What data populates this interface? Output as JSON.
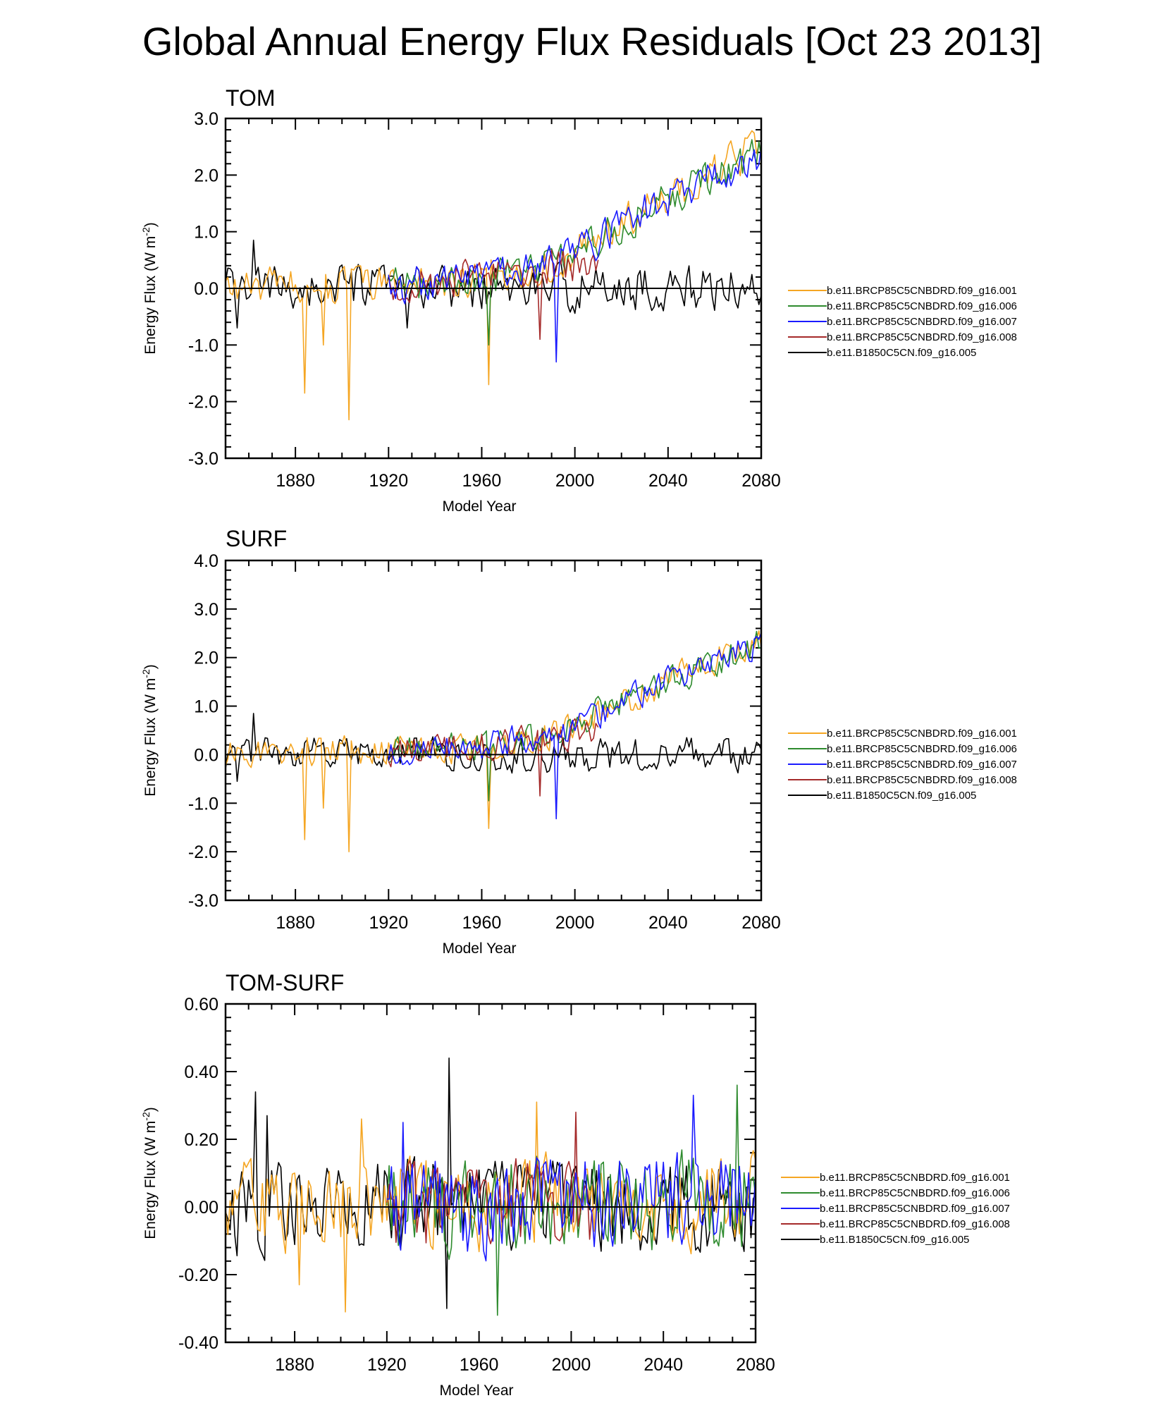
{
  "title": "Global Annual Energy Flux Residuals [Oct 23 2013]",
  "legend_colors": {
    "b.e11.BRCP85C5CNBDRD.f09_g16.001": "#f5a623",
    "b.e11.BRCP85C5CNBDRD.f09_g16.006": "#2e8b2e",
    "b.e11.BRCP85C5CNBDRD.f09_g16.007": "#1a1aff",
    "b.e11.BRCP85C5CNBDRD.f09_g16.008": "#a52a2a",
    "b.e11.B1850C5CN.f09_g16.005": "#000000"
  },
  "chart_data": [
    {
      "type": "line",
      "title": "TOM",
      "xlabel": "Model Year",
      "ylabel": "Energy Flux (W m-2)",
      "xlim": [
        1850,
        2080
      ],
      "ylim": [
        -3.0,
        3.0
      ],
      "x_ticks": [
        1880,
        1920,
        1960,
        2000,
        2040,
        2080
      ],
      "y_ticks": [
        -3.0,
        -2.0,
        -1.0,
        0.0,
        1.0,
        2.0,
        3.0
      ],
      "y_tick_labels": [
        "-3.0",
        "-2.0",
        "-1.0",
        "0.0",
        "1.0",
        "2.0",
        "3.0"
      ],
      "legend": [
        "b.e11.BRCP85C5CNBDRD.f09_g16.001",
        "b.e11.BRCP85C5CNBDRD.f09_g16.006",
        "b.e11.BRCP85C5CNBDRD.f09_g16.007",
        "b.e11.BRCP85C5CNBDRD.f09_g16.008",
        "b.e11.B1850C5CN.f09_g16.005"
      ],
      "series": [
        {
          "name": "b.e11.B1850C5CN.f09_g16.005",
          "x_range": [
            1850,
            2080
          ],
          "noise_amplitude": 0.35,
          "baseline": [
            [
              1850,
              0.0
            ],
            [
              2080,
              0.0
            ]
          ],
          "spikes": [
            [
              1862,
              0.85
            ],
            [
              1855,
              -0.7
            ],
            [
              1928,
              -0.7
            ]
          ]
        },
        {
          "name": "b.e11.BRCP85C5CNBDRD.f09_g16.001",
          "x_range": [
            1850,
            2080
          ],
          "noise_amplitude": 0.3,
          "baseline": [
            [
              1850,
              0.0
            ],
            [
              1960,
              0.15
            ],
            [
              1990,
              0.4
            ],
            [
              2040,
              1.6
            ],
            [
              2080,
              2.5
            ]
          ],
          "spikes": [
            [
              1884,
              -1.85
            ],
            [
              1892,
              -1.0
            ],
            [
              1903,
              -2.32
            ],
            [
              1963,
              -1.7
            ]
          ]
        },
        {
          "name": "b.e11.BRCP85C5CNBDRD.f09_g16.006",
          "x_range": [
            1920,
            2080
          ],
          "noise_amplitude": 0.3,
          "baseline": [
            [
              1920,
              0.05
            ],
            [
              1960,
              0.2
            ],
            [
              1990,
              0.4
            ],
            [
              2040,
              1.6
            ],
            [
              2080,
              2.4
            ]
          ],
          "spikes": [
            [
              1963,
              -1.0
            ]
          ]
        },
        {
          "name": "b.e11.BRCP85C5CNBDRD.f09_g16.007",
          "x_range": [
            1920,
            2080
          ],
          "noise_amplitude": 0.3,
          "baseline": [
            [
              1920,
              0.05
            ],
            [
              1960,
              0.2
            ],
            [
              1990,
              0.4
            ],
            [
              2040,
              1.6
            ],
            [
              2080,
              2.4
            ]
          ],
          "spikes": [
            [
              1992,
              -1.3
            ]
          ]
        },
        {
          "name": "b.e11.BRCP85C5CNBDRD.f09_g16.008",
          "x_range": [
            1920,
            2010
          ],
          "noise_amplitude": 0.3,
          "baseline": [
            [
              1920,
              0.05
            ],
            [
              1960,
              0.2
            ],
            [
              2010,
              0.5
            ]
          ],
          "spikes": [
            [
              1985,
              -0.9
            ]
          ]
        }
      ]
    },
    {
      "type": "line",
      "title": "SURF",
      "xlabel": "Model Year",
      "ylabel": "Energy Flux (W m-2)",
      "xlim": [
        1850,
        2080
      ],
      "ylim": [
        -3.0,
        4.0
      ],
      "x_ticks": [
        1880,
        1920,
        1960,
        2000,
        2040,
        2080
      ],
      "y_ticks": [
        -3.0,
        -2.0,
        -1.0,
        0.0,
        1.0,
        2.0,
        3.0,
        4.0
      ],
      "y_tick_labels": [
        "-3.0",
        "-2.0",
        "-1.0",
        "0.0",
        "1.0",
        "2.0",
        "3.0",
        "4.0"
      ],
      "legend": [
        "b.e11.BRCP85C5CNBDRD.f09_g16.001",
        "b.e11.BRCP85C5CNBDRD.f09_g16.006",
        "b.e11.BRCP85C5CNBDRD.f09_g16.007",
        "b.e11.BRCP85C5CNBDRD.f09_g16.008",
        "b.e11.B1850C5CN.f09_g16.005"
      ],
      "series": [
        {
          "name": "b.e11.B1850C5CN.f09_g16.005",
          "x_range": [
            1850,
            2080
          ],
          "noise_amplitude": 0.32,
          "baseline": [
            [
              1850,
              0.0
            ],
            [
              2080,
              0.0
            ]
          ],
          "spikes": [
            [
              1862,
              0.85
            ],
            [
              1855,
              -0.55
            ]
          ]
        },
        {
          "name": "b.e11.BRCP85C5CNBDRD.f09_g16.001",
          "x_range": [
            1850,
            2080
          ],
          "noise_amplitude": 0.28,
          "baseline": [
            [
              1850,
              0.0
            ],
            [
              1960,
              0.15
            ],
            [
              1990,
              0.4
            ],
            [
              2040,
              1.5
            ],
            [
              2080,
              2.4
            ]
          ],
          "spikes": [
            [
              1884,
              -1.75
            ],
            [
              1892,
              -1.1
            ],
            [
              1903,
              -2.0
            ],
            [
              1963,
              -1.52
            ]
          ]
        },
        {
          "name": "b.e11.BRCP85C5CNBDRD.f09_g16.006",
          "x_range": [
            1920,
            2080
          ],
          "noise_amplitude": 0.28,
          "baseline": [
            [
              1920,
              0.05
            ],
            [
              1960,
              0.2
            ],
            [
              1990,
              0.4
            ],
            [
              2040,
              1.5
            ],
            [
              2080,
              2.3
            ]
          ],
          "spikes": [
            [
              1963,
              -0.95
            ]
          ]
        },
        {
          "name": "b.e11.BRCP85C5CNBDRD.f09_g16.007",
          "x_range": [
            1920,
            2080
          ],
          "noise_amplitude": 0.28,
          "baseline": [
            [
              1920,
              0.05
            ],
            [
              1960,
              0.2
            ],
            [
              1990,
              0.4
            ],
            [
              2040,
              1.5
            ],
            [
              2080,
              2.3
            ]
          ],
          "spikes": [
            [
              1992,
              -1.32
            ]
          ]
        },
        {
          "name": "b.e11.BRCP85C5CNBDRD.f09_g16.008",
          "x_range": [
            1920,
            2010
          ],
          "noise_amplitude": 0.28,
          "baseline": [
            [
              1920,
              0.05
            ],
            [
              1960,
              0.2
            ],
            [
              2010,
              0.5
            ]
          ],
          "spikes": [
            [
              1985,
              -0.85
            ]
          ]
        }
      ]
    },
    {
      "type": "line",
      "title": "TOM-SURF",
      "xlabel": "Model Year",
      "ylabel": "Energy Flux (W m-2)",
      "xlim": [
        1850,
        2080
      ],
      "ylim": [
        -0.4,
        0.6
      ],
      "x_ticks": [
        1880,
        1920,
        1960,
        2000,
        2040,
        2080
      ],
      "y_ticks": [
        -0.4,
        -0.2,
        0.0,
        0.2,
        0.4,
        0.6
      ],
      "y_tick_labels": [
        "-0.40",
        "-0.20",
        "0.00",
        "0.20",
        "0.40",
        "0.60"
      ],
      "legend": [
        "b.e11.BRCP85C5CNBDRD.f09_g16.001",
        "b.e11.BRCP85C5CNBDRD.f09_g16.006",
        "b.e11.BRCP85C5CNBDRD.f09_g16.007",
        "b.e11.BRCP85C5CNBDRD.f09_g16.008",
        "b.e11.B1850C5CN.f09_g16.005"
      ],
      "series": [
        {
          "name": "b.e11.B1850C5CN.f09_g16.005",
          "x_range": [
            1850,
            2080
          ],
          "noise_amplitude": 0.12,
          "baseline": [
            [
              1850,
              0.0
            ],
            [
              2080,
              0.0
            ]
          ],
          "spikes": [
            [
              1863,
              0.34
            ],
            [
              1947,
              0.44
            ],
            [
              1946,
              -0.3
            ],
            [
              1868,
              0.27
            ]
          ]
        },
        {
          "name": "b.e11.BRCP85C5CNBDRD.f09_g16.001",
          "x_range": [
            1850,
            2080
          ],
          "noise_amplitude": 0.12,
          "baseline": [
            [
              1850,
              0.0
            ],
            [
              2080,
              0.02
            ]
          ],
          "spikes": [
            [
              1902,
              -0.31
            ],
            [
              1909,
              0.26
            ],
            [
              1882,
              -0.23
            ],
            [
              1985,
              0.31
            ]
          ]
        },
        {
          "name": "b.e11.BRCP85C5CNBDRD.f09_g16.006",
          "x_range": [
            1920,
            2080
          ],
          "noise_amplitude": 0.13,
          "baseline": [
            [
              1920,
              0.0
            ],
            [
              2080,
              0.02
            ]
          ],
          "spikes": [
            [
              1968,
              -0.32
            ],
            [
              2072,
              0.36
            ]
          ]
        },
        {
          "name": "b.e11.BRCP85C5CNBDRD.f09_g16.007",
          "x_range": [
            1920,
            2080
          ],
          "noise_amplitude": 0.13,
          "baseline": [
            [
              1920,
              0.0
            ],
            [
              2080,
              0.02
            ]
          ],
          "spikes": [
            [
              2053,
              0.33
            ],
            [
              1927,
              0.25
            ]
          ]
        },
        {
          "name": "b.e11.BRCP85C5CNBDRD.f09_g16.008",
          "x_range": [
            1920,
            2010
          ],
          "noise_amplitude": 0.12,
          "baseline": [
            [
              1920,
              0.0
            ],
            [
              2010,
              0.01
            ]
          ],
          "spikes": [
            [
              2002,
              0.28
            ]
          ]
        }
      ]
    }
  ]
}
